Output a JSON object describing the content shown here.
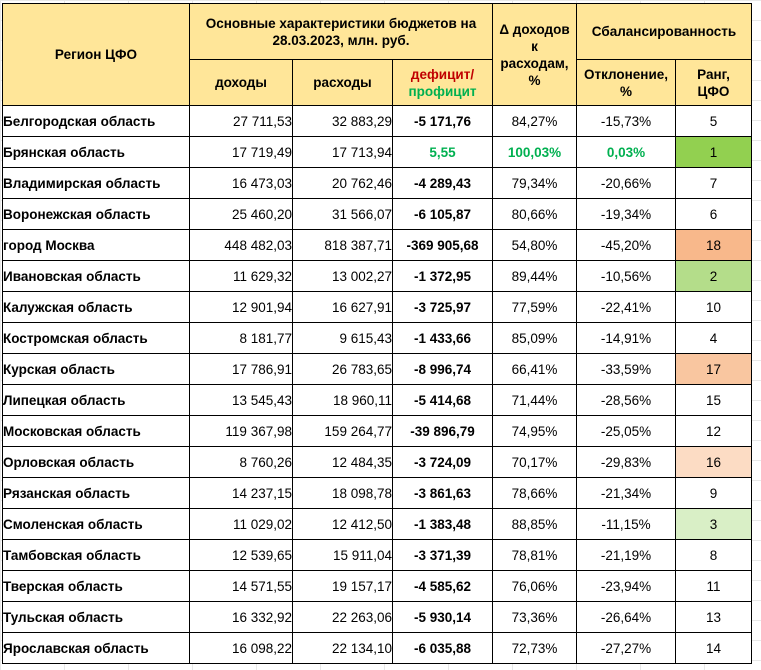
{
  "headers": {
    "region": "Регион ЦФО",
    "budget_group": "Основные характеристики бюджетов на 28.03.2023, млн. руб.",
    "income": "доходы",
    "expense": "расходы",
    "deficit_label": "дефицит/",
    "surplus_label": "профицит",
    "delta": "Δ доходов к расходам, %",
    "balance_group": "Сбалансированность",
    "deviation": "Отклонение, %",
    "rank": "Ранг, ЦФО"
  },
  "rows": [
    {
      "region": "Белгородская область",
      "income": "27 711,53",
      "expense": "32 883,29",
      "balance": "-5 171,76",
      "ratio": "84,27%",
      "deviation": "-15,73%",
      "rank": "5",
      "positive": false,
      "rank_color": ""
    },
    {
      "region": "Брянская область",
      "income": "17 719,49",
      "expense": "17 713,94",
      "balance": "5,55",
      "ratio": "100,03%",
      "deviation": "0,03%",
      "rank": "1",
      "positive": true,
      "rank_color": "#92d050"
    },
    {
      "region": "Владимирская область",
      "income": "16 473,03",
      "expense": "20 762,46",
      "balance": "-4 289,43",
      "ratio": "79,34%",
      "deviation": "-20,66%",
      "rank": "7",
      "positive": false,
      "rank_color": ""
    },
    {
      "region": "Воронежская область",
      "income": "25 460,20",
      "expense": "31 566,07",
      "balance": "-6 105,87",
      "ratio": "80,66%",
      "deviation": "-19,34%",
      "rank": "6",
      "positive": false,
      "rank_color": ""
    },
    {
      "region": "город Москва",
      "income": "448 482,03",
      "expense": "818 387,71",
      "balance": "-369 905,68",
      "ratio": "54,80%",
      "deviation": "-45,20%",
      "rank": "18",
      "positive": false,
      "rank_color": "#f8b88b"
    },
    {
      "region": "Ивановская область",
      "income": "11 629,32",
      "expense": "13 002,27",
      "balance": "-1 372,95",
      "ratio": "89,44%",
      "deviation": "-10,56%",
      "rank": "2",
      "positive": false,
      "rank_color": "#b4dd8a"
    },
    {
      "region": "Калужская область",
      "income": "12 901,94",
      "expense": "16 627,91",
      "balance": "-3 725,97",
      "ratio": "77,59%",
      "deviation": "-22,41%",
      "rank": "10",
      "positive": false,
      "rank_color": ""
    },
    {
      "region": "Костромская область",
      "income": "8 181,77",
      "expense": "9 615,43",
      "balance": "-1 433,66",
      "ratio": "85,09%",
      "deviation": "-14,91%",
      "rank": "4",
      "positive": false,
      "rank_color": ""
    },
    {
      "region": "Курская область",
      "income": "17 786,91",
      "expense": "26 783,65",
      "balance": "-8 996,74",
      "ratio": "66,41%",
      "deviation": "-33,59%",
      "rank": "17",
      "positive": false,
      "rank_color": "#f9c6a0"
    },
    {
      "region": "Липецкая область",
      "income": "13 545,43",
      "expense": "18 960,11",
      "balance": "-5 414,68",
      "ratio": "71,44%",
      "deviation": "-28,56%",
      "rank": "15",
      "positive": false,
      "rank_color": ""
    },
    {
      "region": "Московская область",
      "income": "119 367,98",
      "expense": "159 264,77",
      "balance": "-39 896,79",
      "ratio": "74,95%",
      "deviation": "-25,05%",
      "rank": "12",
      "positive": false,
      "rank_color": ""
    },
    {
      "region": "Орловская область",
      "income": "8 760,26",
      "expense": "12 484,35",
      "balance": "-3 724,09",
      "ratio": "70,17%",
      "deviation": "-29,83%",
      "rank": "16",
      "positive": false,
      "rank_color": "#fcdcc4"
    },
    {
      "region": "Рязанская область",
      "income": "14 237,15",
      "expense": "18 098,78",
      "balance": "-3 861,63",
      "ratio": "78,66%",
      "deviation": "-21,34%",
      "rank": "9",
      "positive": false,
      "rank_color": ""
    },
    {
      "region": "Смоленская область",
      "income": "11 029,02",
      "expense": "12 412,50",
      "balance": "-1 383,48",
      "ratio": "88,85%",
      "deviation": "-11,15%",
      "rank": "3",
      "positive": false,
      "rank_color": "#d9efc6"
    },
    {
      "region": "Тамбовская область",
      "income": "12 539,65",
      "expense": "15 911,04",
      "balance": "-3 371,39",
      "ratio": "78,81%",
      "deviation": "-21,19%",
      "rank": "8",
      "positive": false,
      "rank_color": ""
    },
    {
      "region": "Тверская область",
      "income": "14 571,55",
      "expense": "19 157,17",
      "balance": "-4 585,62",
      "ratio": "76,06%",
      "deviation": "-23,94%",
      "rank": "11",
      "positive": false,
      "rank_color": ""
    },
    {
      "region": "Тульская область",
      "income": "16 332,92",
      "expense": "22 263,06",
      "balance": "-5 930,14",
      "ratio": "73,36%",
      "deviation": "-26,64%",
      "rank": "13",
      "positive": false,
      "rank_color": ""
    },
    {
      "region": "Ярославская область",
      "income": "16 098,22",
      "expense": "22 134,10",
      "balance": "-6 035,88",
      "ratio": "72,73%",
      "deviation": "-27,27%",
      "rank": "14",
      "positive": false,
      "rank_color": ""
    }
  ]
}
